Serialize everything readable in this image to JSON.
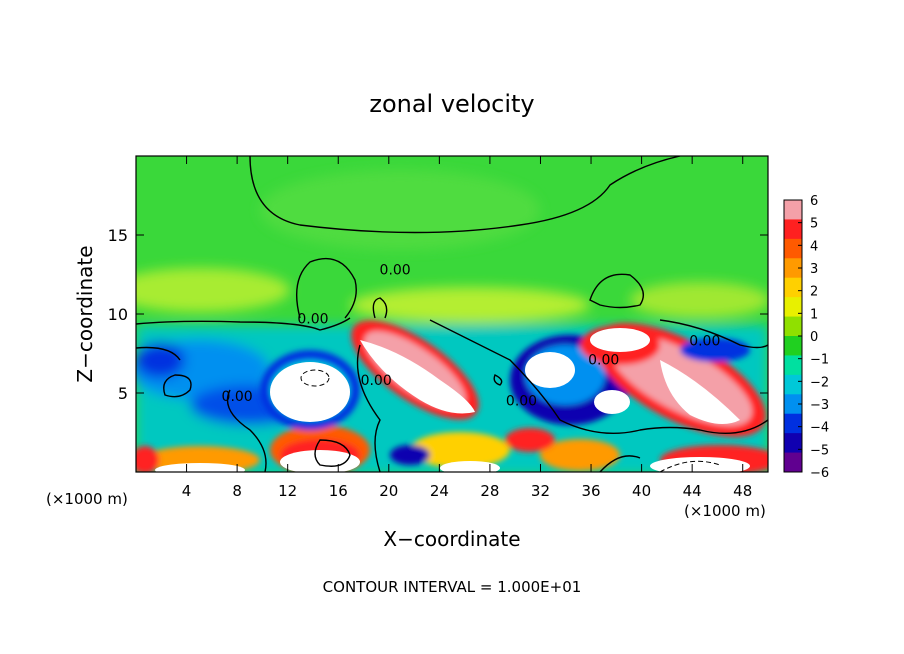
{
  "chart_data": {
    "type": "heatmap",
    "title": "zonal velocity",
    "xlabel": "X−coordinate",
    "ylabel": "Z−coordinate",
    "x_unit_left": "(×1000 m)",
    "x_unit_right": "(×1000 m)",
    "footer": "CONTOUR INTERVAL = 1.000E+01",
    "xlim": [
      0,
      50
    ],
    "ylim": [
      0,
      20
    ],
    "x_ticks": [
      4,
      8,
      12,
      16,
      20,
      24,
      28,
      32,
      36,
      40,
      44,
      48
    ],
    "y_ticks": [
      5,
      10,
      15
    ],
    "colorbar": {
      "min": -6,
      "max": 6,
      "ticks": [
        6,
        5,
        4,
        3,
        2,
        1,
        0,
        -1,
        -2,
        -3,
        -4,
        -5,
        -6
      ],
      "colors": [
        "#f4a0a8",
        "#ff2020",
        "#ff5a00",
        "#ff9a00",
        "#ffd000",
        "#e8f000",
        "#90e000",
        "#20d020",
        "#00e0a0",
        "#00c8d8",
        "#0090f0",
        "#0030e0",
        "#1000b0",
        "#600090"
      ]
    },
    "contour_labels": [
      {
        "text": "0.00",
        "x": 14,
        "y": 9.4
      },
      {
        "text": "0.00",
        "x": 20.5,
        "y": 12.5
      },
      {
        "text": "0.00",
        "x": 19,
        "y": 5.5
      },
      {
        "text": "0.00",
        "x": 8,
        "y": 4.5
      },
      {
        "text": "0.00",
        "x": 30.5,
        "y": 4.2
      },
      {
        "text": "0.00",
        "x": 37,
        "y": 6.8
      },
      {
        "text": "0.00",
        "x": 45,
        "y": 8
      }
    ],
    "features": [
      {
        "kind": "jet-positive",
        "x": [
          18,
          27
        ],
        "z": [
          4,
          10
        ],
        "value": 6
      },
      {
        "kind": "jet-positive",
        "x": [
          34,
          48
        ],
        "z": [
          2,
          10
        ],
        "value": 6
      },
      {
        "kind": "jet-positive",
        "x": [
          10,
          17
        ],
        "z": [
          0,
          3
        ],
        "value": 6
      },
      {
        "kind": "negative-core",
        "x": [
          10,
          17
        ],
        "z": [
          5,
          8
        ],
        "value": -6
      },
      {
        "kind": "negative-core",
        "x": [
          29,
          37
        ],
        "z": [
          2,
          8
        ],
        "value": -6
      }
    ]
  }
}
